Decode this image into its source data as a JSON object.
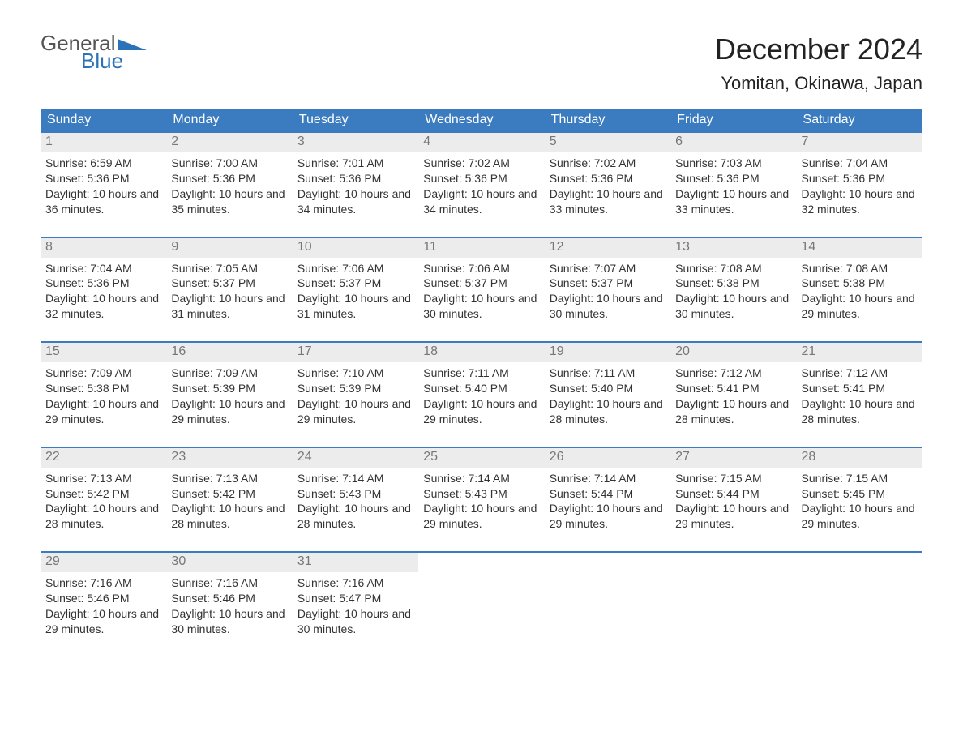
{
  "logo": {
    "part1": "General",
    "part2": "Blue"
  },
  "title": "December 2024",
  "location": "Yomitan, Okinawa, Japan",
  "colors": {
    "header_bg": "#3b7bbf",
    "header_text": "#ffffff",
    "daynum_bg": "#ececec",
    "daynum_text": "#777777",
    "body_text": "#333333",
    "logo_gray": "#555555",
    "logo_blue": "#2b72b8",
    "page_bg": "#ffffff"
  },
  "fonts": {
    "title_size_pt": 27,
    "location_size_pt": 16,
    "header_size_pt": 12,
    "daynum_size_pt": 12,
    "body_size_pt": 10
  },
  "day_headers": [
    "Sunday",
    "Monday",
    "Tuesday",
    "Wednesday",
    "Thursday",
    "Friday",
    "Saturday"
  ],
  "weeks": [
    [
      {
        "num": "1",
        "sunrise": "Sunrise: 6:59 AM",
        "sunset": "Sunset: 5:36 PM",
        "daylight": "Daylight: 10 hours and 36 minutes."
      },
      {
        "num": "2",
        "sunrise": "Sunrise: 7:00 AM",
        "sunset": "Sunset: 5:36 PM",
        "daylight": "Daylight: 10 hours and 35 minutes."
      },
      {
        "num": "3",
        "sunrise": "Sunrise: 7:01 AM",
        "sunset": "Sunset: 5:36 PM",
        "daylight": "Daylight: 10 hours and 34 minutes."
      },
      {
        "num": "4",
        "sunrise": "Sunrise: 7:02 AM",
        "sunset": "Sunset: 5:36 PM",
        "daylight": "Daylight: 10 hours and 34 minutes."
      },
      {
        "num": "5",
        "sunrise": "Sunrise: 7:02 AM",
        "sunset": "Sunset: 5:36 PM",
        "daylight": "Daylight: 10 hours and 33 minutes."
      },
      {
        "num": "6",
        "sunrise": "Sunrise: 7:03 AM",
        "sunset": "Sunset: 5:36 PM",
        "daylight": "Daylight: 10 hours and 33 minutes."
      },
      {
        "num": "7",
        "sunrise": "Sunrise: 7:04 AM",
        "sunset": "Sunset: 5:36 PM",
        "daylight": "Daylight: 10 hours and 32 minutes."
      }
    ],
    [
      {
        "num": "8",
        "sunrise": "Sunrise: 7:04 AM",
        "sunset": "Sunset: 5:36 PM",
        "daylight": "Daylight: 10 hours and 32 minutes."
      },
      {
        "num": "9",
        "sunrise": "Sunrise: 7:05 AM",
        "sunset": "Sunset: 5:37 PM",
        "daylight": "Daylight: 10 hours and 31 minutes."
      },
      {
        "num": "10",
        "sunrise": "Sunrise: 7:06 AM",
        "sunset": "Sunset: 5:37 PM",
        "daylight": "Daylight: 10 hours and 31 minutes."
      },
      {
        "num": "11",
        "sunrise": "Sunrise: 7:06 AM",
        "sunset": "Sunset: 5:37 PM",
        "daylight": "Daylight: 10 hours and 30 minutes."
      },
      {
        "num": "12",
        "sunrise": "Sunrise: 7:07 AM",
        "sunset": "Sunset: 5:37 PM",
        "daylight": "Daylight: 10 hours and 30 minutes."
      },
      {
        "num": "13",
        "sunrise": "Sunrise: 7:08 AM",
        "sunset": "Sunset: 5:38 PM",
        "daylight": "Daylight: 10 hours and 30 minutes."
      },
      {
        "num": "14",
        "sunrise": "Sunrise: 7:08 AM",
        "sunset": "Sunset: 5:38 PM",
        "daylight": "Daylight: 10 hours and 29 minutes."
      }
    ],
    [
      {
        "num": "15",
        "sunrise": "Sunrise: 7:09 AM",
        "sunset": "Sunset: 5:38 PM",
        "daylight": "Daylight: 10 hours and 29 minutes."
      },
      {
        "num": "16",
        "sunrise": "Sunrise: 7:09 AM",
        "sunset": "Sunset: 5:39 PM",
        "daylight": "Daylight: 10 hours and 29 minutes."
      },
      {
        "num": "17",
        "sunrise": "Sunrise: 7:10 AM",
        "sunset": "Sunset: 5:39 PM",
        "daylight": "Daylight: 10 hours and 29 minutes."
      },
      {
        "num": "18",
        "sunrise": "Sunrise: 7:11 AM",
        "sunset": "Sunset: 5:40 PM",
        "daylight": "Daylight: 10 hours and 29 minutes."
      },
      {
        "num": "19",
        "sunrise": "Sunrise: 7:11 AM",
        "sunset": "Sunset: 5:40 PM",
        "daylight": "Daylight: 10 hours and 28 minutes."
      },
      {
        "num": "20",
        "sunrise": "Sunrise: 7:12 AM",
        "sunset": "Sunset: 5:41 PM",
        "daylight": "Daylight: 10 hours and 28 minutes."
      },
      {
        "num": "21",
        "sunrise": "Sunrise: 7:12 AM",
        "sunset": "Sunset: 5:41 PM",
        "daylight": "Daylight: 10 hours and 28 minutes."
      }
    ],
    [
      {
        "num": "22",
        "sunrise": "Sunrise: 7:13 AM",
        "sunset": "Sunset: 5:42 PM",
        "daylight": "Daylight: 10 hours and 28 minutes."
      },
      {
        "num": "23",
        "sunrise": "Sunrise: 7:13 AM",
        "sunset": "Sunset: 5:42 PM",
        "daylight": "Daylight: 10 hours and 28 minutes."
      },
      {
        "num": "24",
        "sunrise": "Sunrise: 7:14 AM",
        "sunset": "Sunset: 5:43 PM",
        "daylight": "Daylight: 10 hours and 28 minutes."
      },
      {
        "num": "25",
        "sunrise": "Sunrise: 7:14 AM",
        "sunset": "Sunset: 5:43 PM",
        "daylight": "Daylight: 10 hours and 29 minutes."
      },
      {
        "num": "26",
        "sunrise": "Sunrise: 7:14 AM",
        "sunset": "Sunset: 5:44 PM",
        "daylight": "Daylight: 10 hours and 29 minutes."
      },
      {
        "num": "27",
        "sunrise": "Sunrise: 7:15 AM",
        "sunset": "Sunset: 5:44 PM",
        "daylight": "Daylight: 10 hours and 29 minutes."
      },
      {
        "num": "28",
        "sunrise": "Sunrise: 7:15 AM",
        "sunset": "Sunset: 5:45 PM",
        "daylight": "Daylight: 10 hours and 29 minutes."
      }
    ],
    [
      {
        "num": "29",
        "sunrise": "Sunrise: 7:16 AM",
        "sunset": "Sunset: 5:46 PM",
        "daylight": "Daylight: 10 hours and 29 minutes."
      },
      {
        "num": "30",
        "sunrise": "Sunrise: 7:16 AM",
        "sunset": "Sunset: 5:46 PM",
        "daylight": "Daylight: 10 hours and 30 minutes."
      },
      {
        "num": "31",
        "sunrise": "Sunrise: 7:16 AM",
        "sunset": "Sunset: 5:47 PM",
        "daylight": "Daylight: 10 hours and 30 minutes."
      },
      null,
      null,
      null,
      null
    ]
  ]
}
